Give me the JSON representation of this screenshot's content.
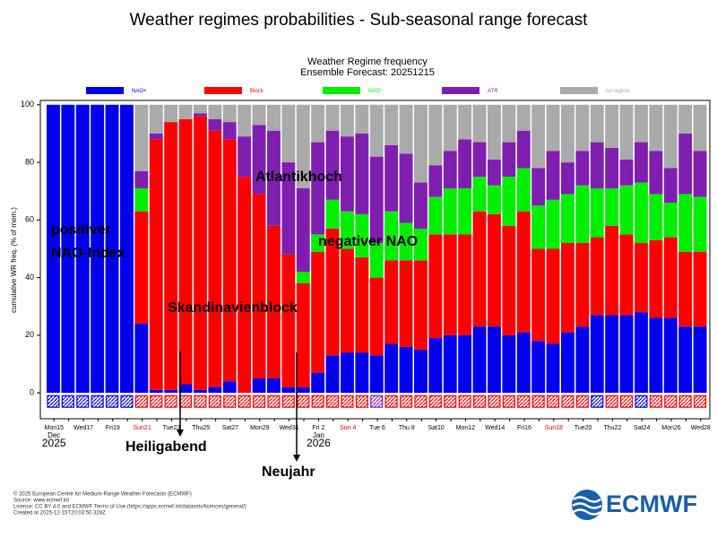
{
  "chart_data": {
    "type": "stacked_bar",
    "page_title": "Weather regimes probabilities - Sub-seasonal range forecast",
    "title": "Weather Regime frequency",
    "subtitle": "Ensemble Forecast: 20251215",
    "y_label": "cumulative WR freq. (% of mem.)",
    "categories": [
      "Mon15",
      null,
      "Wed17",
      null,
      "Fri19",
      null,
      "Sun21",
      null,
      "Tue23",
      null,
      "Thu25",
      null,
      "Sat27",
      null,
      "Mon29",
      null,
      "Wed31",
      null,
      "Fri 2",
      null,
      "Sun 4",
      null,
      "Tue 6",
      null,
      "Thu 8",
      null,
      "Sat10",
      null,
      "Mon12",
      null,
      "Wed14",
      null,
      "Fri16",
      null,
      "Sun18",
      null,
      "Tue20",
      null,
      "Thu22",
      null,
      "Sat24",
      null,
      "Mon26",
      null,
      "Wed28"
    ],
    "highlighted_ticks": [
      6,
      20,
      34
    ],
    "highlight_color": "#e00000",
    "month_labels": [
      {
        "month": "Dec",
        "year": "2025"
      },
      {
        "month": "Jan",
        "year": "2026"
      }
    ],
    "series": [
      {
        "name": "NAO+",
        "color": "#0000ee",
        "values": [
          100,
          100,
          100,
          100,
          100,
          100,
          24,
          1,
          1,
          3,
          1,
          2,
          4,
          0,
          5,
          5,
          2,
          2,
          7,
          13,
          14,
          14,
          13,
          17,
          16,
          15,
          19,
          20,
          20,
          23,
          23,
          20,
          21,
          18,
          17,
          21,
          23,
          27,
          27,
          27,
          28,
          26,
          26,
          23,
          23
        ]
      },
      {
        "name": "Block",
        "color": "#ff0000",
        "values": [
          0,
          0,
          0,
          0,
          0,
          0,
          39,
          87,
          93,
          92,
          95,
          89,
          84,
          75,
          64,
          53,
          46,
          36,
          42,
          44,
          36,
          33,
          27,
          29,
          30,
          31,
          36,
          35,
          35,
          40,
          39,
          38,
          42,
          32,
          33,
          31,
          29,
          27,
          31,
          28,
          24,
          27,
          28,
          26,
          26
        ]
      },
      {
        "name": "NAO-",
        "color": "#00ee00",
        "values": [
          0,
          0,
          0,
          0,
          0,
          0,
          8,
          0,
          0,
          0,
          0,
          0,
          0,
          0,
          0,
          0,
          0,
          4,
          6,
          10,
          13,
          15,
          12,
          17,
          13,
          11,
          13,
          16,
          16,
          12,
          10,
          17,
          15,
          15,
          17,
          17,
          20,
          17,
          13,
          17,
          21,
          16,
          12,
          20,
          19
        ]
      },
      {
        "name": "ATR",
        "color": "#7f1fb0",
        "values": [
          0,
          0,
          0,
          0,
          0,
          0,
          6,
          2,
          0,
          0,
          1,
          4,
          6,
          14,
          24,
          33,
          32,
          29,
          32,
          24,
          26,
          28,
          30,
          23,
          24,
          16,
          11,
          13,
          17,
          12,
          9,
          12,
          13,
          13,
          17,
          11,
          12,
          16,
          14,
          9,
          14,
          15,
          12,
          21,
          16
        ]
      },
      {
        "name": "no regime",
        "color": "#aaaaaa",
        "values": [
          0,
          0,
          0,
          0,
          0,
          0,
          23,
          10,
          6,
          5,
          3,
          5,
          6,
          11,
          7,
          9,
          20,
          29,
          13,
          9,
          11,
          10,
          18,
          14,
          17,
          27,
          21,
          16,
          12,
          13,
          19,
          13,
          9,
          22,
          16,
          20,
          16,
          13,
          15,
          19,
          13,
          16,
          22,
          10,
          16
        ]
      }
    ],
    "ylim": [
      -9,
      101.5
    ],
    "yticks": [
      0,
      20,
      40,
      60,
      80,
      100
    ],
    "annotations": [
      "positiver",
      "NAO-Index",
      "Atlantikhoch",
      "negativer NAO",
      "Skandinavienblock",
      "Heiligabend",
      "Neujahr"
    ],
    "footer": [
      "© 2025 European Centre for Medium-Range Weather Forecasts (ECMWF)",
      "Source: www.ecmwf.int",
      "Licence: CC BY 4.0 and ECMWF Terms of Use (https://apps.ecmwf.int/datasets/licences/general/)",
      "Created at 2025-12-15T20:03:50.328Z"
    ],
    "logo": "ECMWF"
  }
}
